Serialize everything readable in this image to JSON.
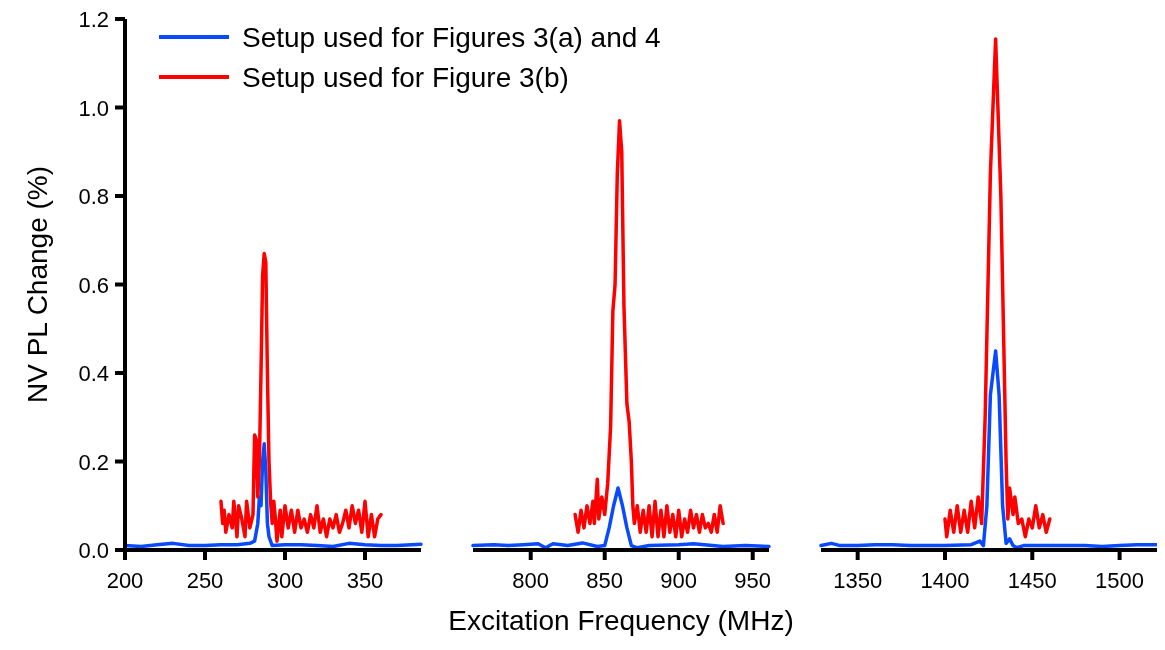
{
  "chart_data": [
    {
      "type": "line",
      "ylabel": "NV PL Change (%)",
      "legend": "top right",
      "xlim": [
        200,
        385
      ],
      "xticks": [
        200,
        250,
        300,
        350
      ],
      "ylim": [
        0,
        1.2
      ],
      "yticks": [
        {
          "value": 0,
          "label": "0.0"
        },
        0.2,
        0.4,
        0.6,
        0.8,
        {
          "value": 1,
          "label": "1.0"
        },
        1.2
      ],
      "series": [
        {
          "name": "Setup used for Figures 3(a) and 4",
          "color": "#0a4aff",
          "x": [
            200,
            210,
            220,
            230,
            240,
            250,
            260,
            270,
            278,
            281,
            283,
            284,
            285,
            286,
            287,
            288,
            289,
            290,
            292,
            300,
            310,
            320,
            330,
            340,
            350,
            360,
            370,
            385
          ],
          "values": [
            0.01,
            0.008,
            0.012,
            0.015,
            0.01,
            0.01,
            0.012,
            0.012,
            0.015,
            0.02,
            0.06,
            0.12,
            0.1,
            0.2,
            0.24,
            0.18,
            0.06,
            0.03,
            0.01,
            0.012,
            0.012,
            0.01,
            0.008,
            0.015,
            0.012,
            0.01,
            0.01,
            0.013
          ]
        },
        {
          "name": "Setup used for Figure 3(b)",
          "color": "#ff0000",
          "x": [
            260,
            261,
            262,
            263,
            265,
            267,
            268,
            270,
            271,
            273,
            275,
            276,
            278,
            280,
            281,
            282,
            283,
            284,
            285,
            286,
            287,
            288,
            289,
            290,
            291,
            292,
            293,
            294,
            295,
            297,
            298,
            300,
            302,
            304,
            306,
            308,
            310,
            312,
            314,
            316,
            318,
            320,
            322,
            324,
            326,
            328,
            330,
            332,
            334,
            336,
            338,
            340,
            342,
            344,
            346,
            348,
            350,
            352,
            354,
            356,
            358,
            360
          ],
          "values": [
            0.11,
            0.06,
            0.09,
            0.04,
            0.08,
            0.05,
            0.11,
            0.03,
            0.1,
            0.07,
            0.03,
            0.11,
            0.05,
            0.08,
            0.26,
            0.25,
            0.12,
            0.2,
            0.4,
            0.62,
            0.67,
            0.65,
            0.4,
            0.2,
            0.11,
            0.06,
            0.11,
            0.07,
            0.02,
            0.09,
            0.03,
            0.1,
            0.05,
            0.09,
            0.04,
            0.09,
            0.05,
            0.07,
            0.04,
            0.08,
            0.05,
            0.1,
            0.04,
            0.07,
            0.03,
            0.07,
            0.05,
            0.08,
            0.04,
            0.06,
            0.09,
            0.05,
            0.1,
            0.06,
            0.09,
            0.04,
            0.11,
            0.03,
            0.08,
            0.03,
            0.07,
            0.08
          ]
        }
      ]
    },
    {
      "type": "line",
      "xlabel": "Excitation Frequency (MHz)",
      "tick_labels": "x",
      "xlim": [
        761,
        961
      ],
      "xticks": [
        800,
        850,
        900,
        950
      ],
      "ylim": [
        0,
        1.2
      ],
      "series": [
        {
          "color": "#0a4aff",
          "x": [
            761,
            775,
            785,
            795,
            805,
            810,
            815,
            825,
            835,
            845,
            850,
            853,
            856,
            859,
            862,
            865,
            868,
            872,
            880,
            900,
            910,
            930,
            945,
            961
          ],
          "values": [
            0.01,
            0.012,
            0.01,
            0.012,
            0.014,
            0.005,
            0.014,
            0.01,
            0.016,
            0.008,
            0.01,
            0.05,
            0.1,
            0.14,
            0.1,
            0.05,
            0.01,
            0.005,
            0.01,
            0.012,
            0.014,
            0.008,
            0.01,
            0.008
          ]
        },
        {
          "color": "#ff0000",
          "x": [
            830,
            831,
            832,
            834,
            836,
            838,
            840,
            842,
            843,
            845,
            846,
            848,
            850,
            852,
            854,
            855.5,
            857,
            858.5,
            860,
            861.5,
            863,
            865,
            866.5,
            868,
            869,
            870,
            872,
            874,
            876,
            878,
            880,
            882,
            884,
            886,
            888,
            890,
            892,
            894,
            896,
            898,
            900,
            902,
            904,
            906,
            908,
            910,
            912,
            914,
            916,
            918,
            920,
            922,
            924,
            926,
            928,
            930
          ],
          "values": [
            0.08,
            0.06,
            0.04,
            0.09,
            0.05,
            0.1,
            0.06,
            0.11,
            0.06,
            0.16,
            0.07,
            0.12,
            0.08,
            0.15,
            0.28,
            0.54,
            0.6,
            0.85,
            0.97,
            0.9,
            0.55,
            0.33,
            0.29,
            0.2,
            0.1,
            0.06,
            0.1,
            0.04,
            0.09,
            0.04,
            0.1,
            0.03,
            0.11,
            0.03,
            0.09,
            0.03,
            0.1,
            0.04,
            0.08,
            0.03,
            0.09,
            0.03,
            0.07,
            0.04,
            0.09,
            0.05,
            0.08,
            0.04,
            0.08,
            0.05,
            0.06,
            0.04,
            0.08,
            0.04,
            0.1,
            0.06
          ]
        }
      ]
    },
    {
      "type": "line",
      "tick_labels": "x",
      "xlim": [
        1329,
        1526
      ],
      "xticks": [
        1350,
        1400,
        1450,
        1500
      ],
      "ylim": [
        0,
        1.2
      ],
      "series": [
        {
          "color": "#0a4aff",
          "x": [
            1329,
            1335,
            1340,
            1350,
            1360,
            1370,
            1380,
            1390,
            1400,
            1415,
            1420,
            1422,
            1424,
            1426,
            1429,
            1431,
            1433,
            1435,
            1437,
            1439,
            1441,
            1445,
            1460,
            1480,
            1490,
            1500,
            1510,
            1521
          ],
          "values": [
            0.01,
            0.015,
            0.01,
            0.01,
            0.012,
            0.012,
            0.01,
            0.01,
            0.01,
            0.012,
            0.02,
            0.01,
            0.1,
            0.35,
            0.45,
            0.35,
            0.1,
            0.015,
            0.025,
            0.01,
            0.005,
            0.01,
            0.01,
            0.01,
            0.008,
            0.01,
            0.012,
            0.012
          ]
        },
        {
          "color": "#ff0000",
          "x": [
            1400,
            1401,
            1403,
            1405,
            1407,
            1409,
            1411,
            1413,
            1415,
            1417,
            1419,
            1421,
            1423,
            1426,
            1429,
            1432,
            1435,
            1436,
            1437,
            1439,
            1440,
            1442,
            1444,
            1446,
            1448,
            1450,
            1452,
            1454,
            1456,
            1458,
            1460
          ],
          "values": [
            0.07,
            0.03,
            0.09,
            0.04,
            0.1,
            0.04,
            0.09,
            0.04,
            0.11,
            0.05,
            0.12,
            0.06,
            0.3,
            0.85,
            1.155,
            0.8,
            0.2,
            0.07,
            0.14,
            0.08,
            0.12,
            0.06,
            0.07,
            0.03,
            0.07,
            0.05,
            0.1,
            0.05,
            0.08,
            0.04,
            0.07
          ]
        }
      ]
    }
  ]
}
